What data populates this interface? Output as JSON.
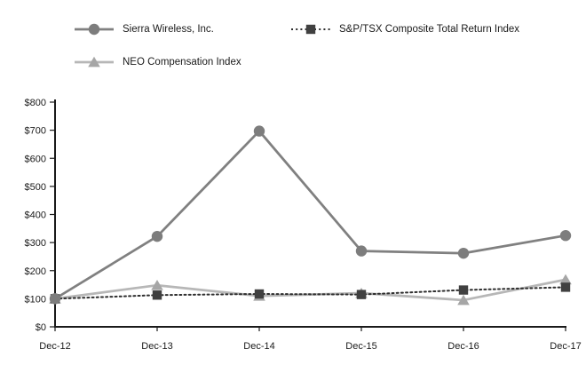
{
  "chart_data": {
    "type": "line",
    "title": "",
    "xlabel": "",
    "ylabel": "",
    "grid": false,
    "legend_position": "top",
    "categories": [
      "Dec-12",
      "Dec-13",
      "Dec-14",
      "Dec-15",
      "Dec-16",
      "Dec-17"
    ],
    "series": [
      {
        "name": "Sierra Wireless, Inc.",
        "values": [
          100,
          322,
          697,
          270,
          262,
          325
        ],
        "color": "#808080",
        "marker_color": "#7d7d7d",
        "marker": "circle",
        "line_style": "solid"
      },
      {
        "name": "S&P/TSX Composite Total Return Index",
        "values": [
          100,
          113,
          117,
          115,
          131,
          141
        ],
        "color": "#2e2e2e",
        "marker_color": "#404040",
        "marker": "square",
        "line_style": "dotted"
      },
      {
        "name": "NEO Compensation Index",
        "values": [
          100,
          148,
          110,
          120,
          95,
          168
        ],
        "color": "#b7b7b7",
        "marker_color": "#a6a6a6",
        "marker": "triangle",
        "line_style": "solid"
      }
    ],
    "ylim": [
      0,
      800
    ],
    "y_tick_step": 100,
    "y_tick_labels": [
      "$0",
      "$100",
      "$200",
      "$300",
      "$400",
      "$500",
      "$600",
      "$700",
      "$800"
    ],
    "axis_color": "#1a1a1a"
  }
}
